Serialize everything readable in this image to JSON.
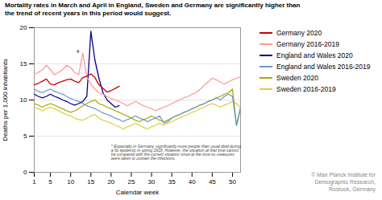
{
  "chart_data": {
    "type": "line",
    "title": "Mortality rates in March and April in England, Sweden and Germany are significantly higher than\nthe trend of recent years in this period would suggest.",
    "xlabel": "Calendar week",
    "ylabel": "Deaths per 1,000 inhabitants",
    "xlim": [
      1,
      52
    ],
    "ylim": [
      0,
      20
    ],
    "xticks": [
      1,
      5,
      10,
      15,
      20,
      25,
      30,
      35,
      40,
      45,
      50
    ],
    "yticks": [
      0,
      5,
      10,
      15,
      20
    ],
    "grid": true,
    "legend": "right",
    "caption": "© Max Planck Institute for\nDemographic Research,\nRostock, Germany",
    "annotations": [
      {
        "text": "*",
        "x": 11.3,
        "y": 16.8
      },
      {
        "text": "* Especially in Germany, significantly more people than usual died during\na flu epidemic in spring 2018. However, the situation at that time cannot\nbe compared with the current situation since at the time no measures\nwere taken to contain the infections.",
        "x": 20,
        "y": 3.8
      }
    ],
    "series": [
      {
        "name": "Germany 2020",
        "color": "#cc0000",
        "x": [
          1,
          2,
          3,
          4,
          5,
          6,
          7,
          8,
          9,
          10,
          11,
          12,
          13,
          14,
          15,
          16,
          17,
          18,
          19,
          20,
          21,
          22
        ],
        "values": [
          12.1,
          12.3,
          12.6,
          12.9,
          12.2,
          12.1,
          12.4,
          12.6,
          12.8,
          12.9,
          12.6,
          12.4,
          13.1,
          13.3,
          13.6,
          13.1,
          12.1,
          11.6,
          11.1,
          11.3,
          11.6,
          11.9
        ]
      },
      {
        "name": "Germany 2016-2019",
        "color": "#ff9999",
        "x": [
          1,
          2,
          3,
          4,
          5,
          6,
          7,
          8,
          9,
          10,
          11,
          12,
          13,
          14,
          15,
          16,
          17,
          18,
          19,
          20,
          21,
          22,
          23,
          24,
          25,
          26,
          27,
          28,
          29,
          30,
          31,
          32,
          33,
          34,
          35,
          36,
          37,
          38,
          39,
          40,
          41,
          42,
          43,
          44,
          45,
          46,
          47,
          48,
          49,
          50,
          51,
          52
        ],
        "values": [
          13.5,
          13.8,
          14.2,
          14.8,
          14.2,
          13.5,
          13.8,
          14.2,
          14.8,
          14.5,
          13.8,
          13.5,
          16.5,
          13.2,
          12.2,
          11.5,
          11.0,
          10.8,
          10.5,
          10.2,
          10.0,
          9.8,
          9.5,
          9.2,
          9.5,
          9.8,
          9.5,
          9.2,
          9.0,
          8.8,
          8.5,
          8.8,
          9.0,
          9.2,
          9.5,
          9.8,
          10.0,
          10.3,
          10.5,
          10.8,
          11.0,
          11.5,
          12.0,
          12.5,
          13.0,
          12.8,
          12.5,
          12.2,
          12.5,
          12.8,
          13.0,
          13.2
        ]
      },
      {
        "name": "England and Wales 2020",
        "color": "#00008b",
        "x": [
          1,
          2,
          3,
          4,
          5,
          6,
          7,
          8,
          9,
          10,
          11,
          12,
          13,
          14,
          15,
          16,
          17,
          18,
          19,
          20,
          21,
          22
        ],
        "values": [
          10.8,
          10.5,
          10.3,
          10.5,
          10.8,
          10.5,
          10.3,
          10.0,
          9.8,
          9.5,
          9.3,
          9.5,
          9.8,
          10.5,
          19.5,
          15.5,
          13.0,
          11.0,
          10.0,
          9.5,
          9.0,
          9.2
        ]
      },
      {
        "name": "England and Wales 2016-2019",
        "color": "#6699cc",
        "x": [
          1,
          2,
          3,
          4,
          5,
          6,
          7,
          8,
          9,
          10,
          11,
          12,
          13,
          14,
          15,
          16,
          17,
          18,
          19,
          20,
          21,
          22,
          23,
          24,
          25,
          26,
          27,
          28,
          29,
          30,
          31,
          32,
          33,
          34,
          35,
          36,
          37,
          38,
          39,
          40,
          41,
          42,
          43,
          44,
          45,
          46,
          47,
          48,
          49,
          50,
          51,
          52
        ],
        "values": [
          11.5,
          11.2,
          11.0,
          11.3,
          11.5,
          11.2,
          11.0,
          10.8,
          10.5,
          10.2,
          10.0,
          9.8,
          9.5,
          9.2,
          9.0,
          8.8,
          8.5,
          8.2,
          8.0,
          7.8,
          7.5,
          7.3,
          7.0,
          7.3,
          7.5,
          7.8,
          7.5,
          7.3,
          7.0,
          7.3,
          7.5,
          7.8,
          6.8,
          7.0,
          7.5,
          7.8,
          8.0,
          8.3,
          8.5,
          8.8,
          9.0,
          9.3,
          9.5,
          9.8,
          10.0,
          10.3,
          10.0,
          10.5,
          10.8,
          10.5,
          6.5,
          9.0
        ]
      },
      {
        "name": "Sweden 2020",
        "color": "#aaaa00",
        "x": [
          1,
          2,
          3,
          4,
          5,
          6,
          7,
          8,
          9,
          10,
          11,
          12,
          13,
          14,
          15,
          16,
          17,
          18,
          19,
          20,
          21,
          22,
          23,
          24,
          25,
          26,
          27,
          28,
          29,
          30,
          31,
          32,
          33,
          34,
          35,
          36,
          37,
          38,
          39,
          40,
          41,
          42,
          43,
          44,
          45,
          46,
          47,
          48,
          49,
          50,
          51,
          52
        ],
        "values": [
          9.5,
          9.3,
          9.0,
          9.3,
          9.5,
          9.3,
          9.0,
          8.8,
          8.5,
          8.3,
          8.5,
          8.8,
          9.2,
          9.5,
          9.8,
          10.0,
          9.5,
          9.3,
          9.0,
          8.8,
          8.5,
          8.3,
          8.0,
          7.8,
          7.5,
          7.2,
          7.0,
          7.3,
          7.5,
          7.8,
          7.5,
          7.2,
          7.0,
          7.2,
          7.5,
          7.8,
          8.0,
          8.3,
          8.5,
          8.8,
          9.0,
          9.3,
          9.5,
          9.8,
          10.0,
          10.3,
          10.5,
          10.8,
          11.0,
          11.5,
          6.5,
          8.8
        ]
      },
      {
        "name": "Sweden 2016-2019",
        "color": "#ddcc44",
        "x": [
          1,
          2,
          3,
          4,
          5,
          6,
          7,
          8,
          9,
          10,
          11,
          12,
          13,
          14,
          15,
          16,
          17,
          18,
          19,
          20,
          21,
          22,
          23,
          24,
          25,
          26,
          27,
          28,
          29,
          30,
          31,
          32,
          33,
          34,
          35,
          36,
          37,
          38,
          39,
          40,
          41,
          42,
          43,
          44,
          45,
          46,
          47,
          48,
          49,
          50,
          51,
          52
        ],
        "values": [
          9.0,
          8.8,
          8.5,
          8.8,
          9.0,
          8.8,
          8.5,
          8.2,
          8.0,
          7.8,
          7.5,
          7.3,
          7.2,
          7.5,
          7.8,
          8.0,
          7.5,
          7.2,
          7.0,
          6.8,
          6.5,
          6.3,
          6.0,
          6.3,
          6.5,
          6.8,
          6.5,
          6.2,
          6.0,
          6.3,
          6.5,
          6.8,
          6.5,
          6.8,
          7.0,
          7.3,
          7.5,
          7.8,
          8.0,
          8.3,
          8.5,
          8.8,
          9.0,
          9.3,
          9.5,
          9.3,
          9.0,
          9.3,
          9.5,
          9.8,
          9.5,
          9.0
        ]
      }
    ]
  }
}
